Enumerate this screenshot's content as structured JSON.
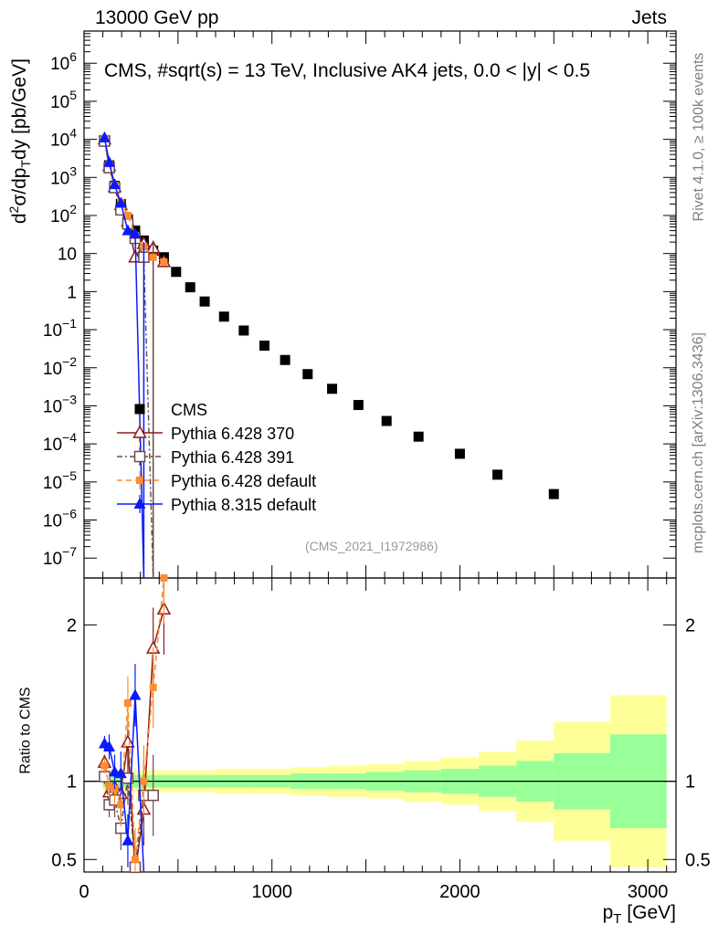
{
  "header": {
    "left": "13000 GeV pp",
    "right": "Jets"
  },
  "side_labels": {
    "top": "Rivet 4.1.0, ≥ 100k events",
    "bottom": "mcplots.cern.ch [arXiv:1306.3436]"
  },
  "analysis_tag": "(CMS_2021_I1972986)",
  "colors": {
    "cms": "#000000",
    "p6_370": "#8b1a1a",
    "p6_391": "#6b4b4b",
    "p6_default": "#ff8c30",
    "p8_default": "#0a1aff",
    "band_inner": "#99ff99",
    "band_outer": "#ffff99"
  },
  "chart_data": [
    {
      "type": "scatter",
      "title": "CMS, #sqrt(s) = 13 TeV, Inclusive AK4 jets, 0.0 < |y| < 0.5",
      "ylabel": "d²σ/dp_T dy [pb/GeV]",
      "ylabel_parts": {
        "a": "d",
        "b": "2",
        "c": "σ/dp",
        "d": "T",
        "e": "dy [pb/GeV]"
      },
      "yscale": "log",
      "xlim": [
        0,
        3150
      ],
      "ylim": [
        3e-08,
        7000000.0
      ],
      "y_ticks": [
        {
          "v": 1000000.0,
          "base": "10",
          "exp": "6"
        },
        {
          "v": 100000.0,
          "base": "10",
          "exp": "5"
        },
        {
          "v": 10000.0,
          "base": "10",
          "exp": "4"
        },
        {
          "v": 1000.0,
          "base": "10",
          "exp": "3"
        },
        {
          "v": 100.0,
          "base": "10",
          "exp": "2"
        },
        {
          "v": 10,
          "base": "10",
          "exp": ""
        },
        {
          "v": 1,
          "base": "1",
          "exp": ""
        },
        {
          "v": 0.1,
          "base": "10",
          "exp": "−1"
        },
        {
          "v": 0.01,
          "base": "10",
          "exp": "−2"
        },
        {
          "v": 0.001,
          "base": "10",
          "exp": "−3"
        },
        {
          "v": 0.0001,
          "base": "10",
          "exp": "−4"
        },
        {
          "v": 1e-05,
          "base": "10",
          "exp": "−5"
        },
        {
          "v": 1e-06,
          "base": "10",
          "exp": "−6"
        },
        {
          "v": 1e-07,
          "base": "10",
          "exp": "−7"
        }
      ],
      "legend": [
        "CMS",
        "Pythia 6.428 370",
        "Pythia 6.428 391",
        "Pythia 6.428 default",
        "Pythia 8.315 default"
      ],
      "series": [
        {
          "name": "CMS",
          "key": "cms",
          "marker": "square",
          "x": [
            109,
            134,
            163,
            196,
            233,
            272,
            318,
            368,
            425,
            490,
            565,
            642,
            745,
            850,
            960,
            1070,
            1190,
            1320,
            1460,
            1610,
            1780,
            2000,
            2200,
            2500,
            2800,
            3100
          ],
          "y": [
            9500,
            2100,
            600,
            200,
            80,
            40,
            22,
            12,
            8,
            3.3,
            1.3,
            0.55,
            0.22,
            0.095,
            0.038,
            0.016,
            0.0068,
            0.0028,
            0.00105,
            0.0004,
            0.000155,
            5.5e-05,
            1.55e-05,
            4.8e-06,
            0,
            0
          ]
        },
        {
          "name": "Pythia 6.428 370",
          "key": "p6_370",
          "marker": "open-triangle",
          "dash": "",
          "x": [
            109,
            134,
            163,
            196,
            233,
            272,
            318,
            368,
            425
          ],
          "y": [
            10000,
            2000,
            560,
            190,
            70,
            8,
            18,
            14,
            6
          ],
          "ratio": [
            1.12,
            0.93,
            0.96,
            0.92,
            1.25,
            0.05,
            0.82,
            1.85,
            2.1
          ]
        },
        {
          "name": "Pythia 6.428 391",
          "key": "p6_391",
          "marker": "open-square",
          "dash": "6,3,2,3",
          "x": [
            109,
            134,
            163,
            196,
            233,
            272,
            318,
            368
          ],
          "y": [
            9000,
            1800,
            540,
            140,
            60,
            25,
            8,
            0
          ],
          "ratio": [
            1.03,
            0.85,
            0.88,
            0.7,
            1.02,
            0.45,
            0.91,
            0.91
          ]
        },
        {
          "name": "Pythia 6.428 default",
          "key": "p6_default",
          "marker": "filled-square",
          "dash": "6,4",
          "x": [
            109,
            134,
            163,
            196,
            233,
            272,
            318,
            368,
            425
          ],
          "y": [
            10500,
            2300,
            620,
            220,
            100,
            30,
            15,
            8,
            6
          ],
          "ratio": [
            1.1,
            0.97,
            0.95,
            0.85,
            1.5,
            0.5,
            1.0,
            1.6,
            2.3
          ]
        },
        {
          "name": "Pythia 8.315 default",
          "key": "p8_default",
          "marker": "filled-triangle",
          "dash": "",
          "x": [
            109,
            134,
            163,
            196,
            233,
            272,
            318
          ],
          "y": [
            11000,
            2500,
            650,
            210,
            40,
            33,
            0
          ],
          "ratio": [
            1.24,
            1.22,
            1.06,
            1.05,
            0.62,
            1.55,
            0.3
          ]
        }
      ]
    },
    {
      "type": "scatter",
      "ylabel": "Ratio to CMS",
      "xlabel": "p_T [GeV]",
      "xlabel_parts": {
        "a": "p",
        "b": "T",
        "c": " [GeV]"
      },
      "xlim": [
        0,
        3150
      ],
      "ylim": [
        0.42,
        2.3
      ],
      "x_ticks": [
        0,
        1000,
        2000,
        3000
      ],
      "x_tick_labels": [
        "0",
        "1000",
        "2000",
        "3000"
      ],
      "y_ticks": [
        0.5,
        1,
        2
      ],
      "y_tick_labels": [
        "0.5",
        "1",
        "2"
      ],
      "band_edges": [
        100,
        300,
        500,
        700,
        900,
        1100,
        1300,
        1500,
        1700,
        1900,
        2100,
        2300,
        2500,
        2800,
        3100
      ],
      "band_inner": [
        0.04,
        0.04,
        0.04,
        0.04,
        0.04,
        0.05,
        0.05,
        0.06,
        0.07,
        0.08,
        0.1,
        0.13,
        0.18,
        0.3
      ],
      "band_outer": [
        0.07,
        0.07,
        0.07,
        0.08,
        0.08,
        0.09,
        0.1,
        0.11,
        0.13,
        0.15,
        0.19,
        0.26,
        0.38,
        0.55
      ]
    }
  ]
}
